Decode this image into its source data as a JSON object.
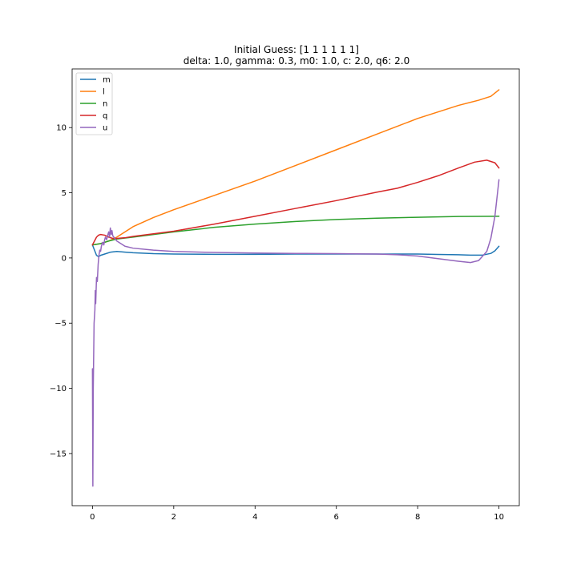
{
  "chart_data": {
    "type": "line",
    "title": "Initial Guess: [1 1 1 1 1 1]",
    "subtitle": "delta: 1.0, gamma: 0.3, m0: 1.0, c: 2.0, q6: 2.0",
    "xlim": [
      -0.5,
      10.5
    ],
    "ylim": [
      -19.0,
      14.5
    ],
    "xticks": [
      0,
      2,
      4,
      6,
      8,
      10
    ],
    "xtick_labels": [
      "0",
      "2",
      "4",
      "6",
      "8",
      "10"
    ],
    "yticks": [
      -15,
      -10,
      -5,
      0,
      5,
      10
    ],
    "ytick_labels": [
      "−15",
      "−10",
      "−5",
      "0",
      "5",
      "10"
    ],
    "grid": false,
    "legend_position": "upper-left",
    "series": [
      {
        "name": "m",
        "color": "#1f77b4",
        "points": [
          [
            0,
            1.0
          ],
          [
            0.05,
            0.6
          ],
          [
            0.1,
            0.2
          ],
          [
            0.15,
            0.1
          ],
          [
            0.2,
            0.2
          ],
          [
            0.3,
            0.3
          ],
          [
            0.45,
            0.45
          ],
          [
            0.6,
            0.5
          ],
          [
            0.8,
            0.45
          ],
          [
            1.0,
            0.4
          ],
          [
            1.5,
            0.33
          ],
          [
            2,
            0.3
          ],
          [
            3,
            0.28
          ],
          [
            4,
            0.28
          ],
          [
            5,
            0.3
          ],
          [
            6,
            0.3
          ],
          [
            7,
            0.3
          ],
          [
            8,
            0.3
          ],
          [
            8.5,
            0.27
          ],
          [
            9,
            0.25
          ],
          [
            9.3,
            0.22
          ],
          [
            9.6,
            0.22
          ],
          [
            9.8,
            0.35
          ],
          [
            9.9,
            0.55
          ],
          [
            10,
            0.9
          ]
        ]
      },
      {
        "name": "l",
        "color": "#ff7f0e",
        "points": [
          [
            0,
            1.0
          ],
          [
            0.2,
            1.1
          ],
          [
            0.4,
            1.3
          ],
          [
            0.6,
            1.6
          ],
          [
            0.8,
            2.0
          ],
          [
            1.0,
            2.4
          ],
          [
            1.5,
            3.1
          ],
          [
            2,
            3.7
          ],
          [
            3,
            4.8
          ],
          [
            4,
            5.9
          ],
          [
            5,
            7.1
          ],
          [
            6,
            8.3
          ],
          [
            7,
            9.5
          ],
          [
            7.5,
            10.1
          ],
          [
            8,
            10.7
          ],
          [
            8.5,
            11.2
          ],
          [
            9,
            11.7
          ],
          [
            9.5,
            12.1
          ],
          [
            9.8,
            12.4
          ],
          [
            10,
            12.9
          ]
        ]
      },
      {
        "name": "n",
        "color": "#2ca02c",
        "points": [
          [
            0,
            1.0
          ],
          [
            0.2,
            1.1
          ],
          [
            0.4,
            1.3
          ],
          [
            0.6,
            1.45
          ],
          [
            1.0,
            1.6
          ],
          [
            1.5,
            1.8
          ],
          [
            2,
            2.0
          ],
          [
            3,
            2.35
          ],
          [
            4,
            2.6
          ],
          [
            5,
            2.8
          ],
          [
            6,
            2.95
          ],
          [
            7,
            3.05
          ],
          [
            8,
            3.12
          ],
          [
            9,
            3.18
          ],
          [
            10,
            3.2
          ]
        ]
      },
      {
        "name": "q",
        "color": "#d62728",
        "points": [
          [
            0,
            1.0
          ],
          [
            0.05,
            1.3
          ],
          [
            0.1,
            1.6
          ],
          [
            0.15,
            1.75
          ],
          [
            0.2,
            1.8
          ],
          [
            0.3,
            1.75
          ],
          [
            0.4,
            1.6
          ],
          [
            0.5,
            1.5
          ],
          [
            0.6,
            1.5
          ],
          [
            0.8,
            1.55
          ],
          [
            1.0,
            1.65
          ],
          [
            1.5,
            1.85
          ],
          [
            2,
            2.05
          ],
          [
            3,
            2.6
          ],
          [
            4,
            3.2
          ],
          [
            5,
            3.8
          ],
          [
            6,
            4.4
          ],
          [
            7,
            5.05
          ],
          [
            7.5,
            5.35
          ],
          [
            8,
            5.8
          ],
          [
            8.5,
            6.3
          ],
          [
            9,
            6.9
          ],
          [
            9.4,
            7.35
          ],
          [
            9.7,
            7.5
          ],
          [
            9.9,
            7.3
          ],
          [
            10,
            6.9
          ]
        ]
      },
      {
        "name": "u",
        "color": "#9467bd",
        "points": [
          [
            0,
            -8.5
          ],
          [
            0.01,
            -17.5
          ],
          [
            0.02,
            -10
          ],
          [
            0.04,
            -5
          ],
          [
            0.06,
            -4
          ],
          [
            0.07,
            -2.5
          ],
          [
            0.08,
            -3.5
          ],
          [
            0.1,
            -1.5
          ],
          [
            0.12,
            -1.8
          ],
          [
            0.14,
            -0.5
          ],
          [
            0.16,
            0.2
          ],
          [
            0.18,
            0.6
          ],
          [
            0.2,
            0.5
          ],
          [
            0.22,
            0.9
          ],
          [
            0.25,
            1.2
          ],
          [
            0.28,
            1.0
          ],
          [
            0.3,
            1.4
          ],
          [
            0.32,
            1.6
          ],
          [
            0.35,
            1.4
          ],
          [
            0.38,
            1.8
          ],
          [
            0.4,
            2.0
          ],
          [
            0.42,
            1.6
          ],
          [
            0.44,
            2.3
          ],
          [
            0.46,
            1.8
          ],
          [
            0.48,
            2.1
          ],
          [
            0.5,
            1.7
          ],
          [
            0.55,
            1.5
          ],
          [
            0.6,
            1.3
          ],
          [
            0.7,
            1.1
          ],
          [
            0.8,
            0.9
          ],
          [
            1.0,
            0.75
          ],
          [
            1.5,
            0.6
          ],
          [
            2,
            0.5
          ],
          [
            3,
            0.42
          ],
          [
            4,
            0.38
          ],
          [
            5,
            0.35
          ],
          [
            6,
            0.33
          ],
          [
            7,
            0.3
          ],
          [
            7.5,
            0.25
          ],
          [
            8,
            0.15
          ],
          [
            8.5,
            -0.05
          ],
          [
            9,
            -0.25
          ],
          [
            9.3,
            -0.35
          ],
          [
            9.5,
            -0.2
          ],
          [
            9.7,
            0.5
          ],
          [
            9.8,
            1.5
          ],
          [
            9.9,
            3.2
          ],
          [
            10,
            6.0
          ]
        ]
      }
    ]
  }
}
